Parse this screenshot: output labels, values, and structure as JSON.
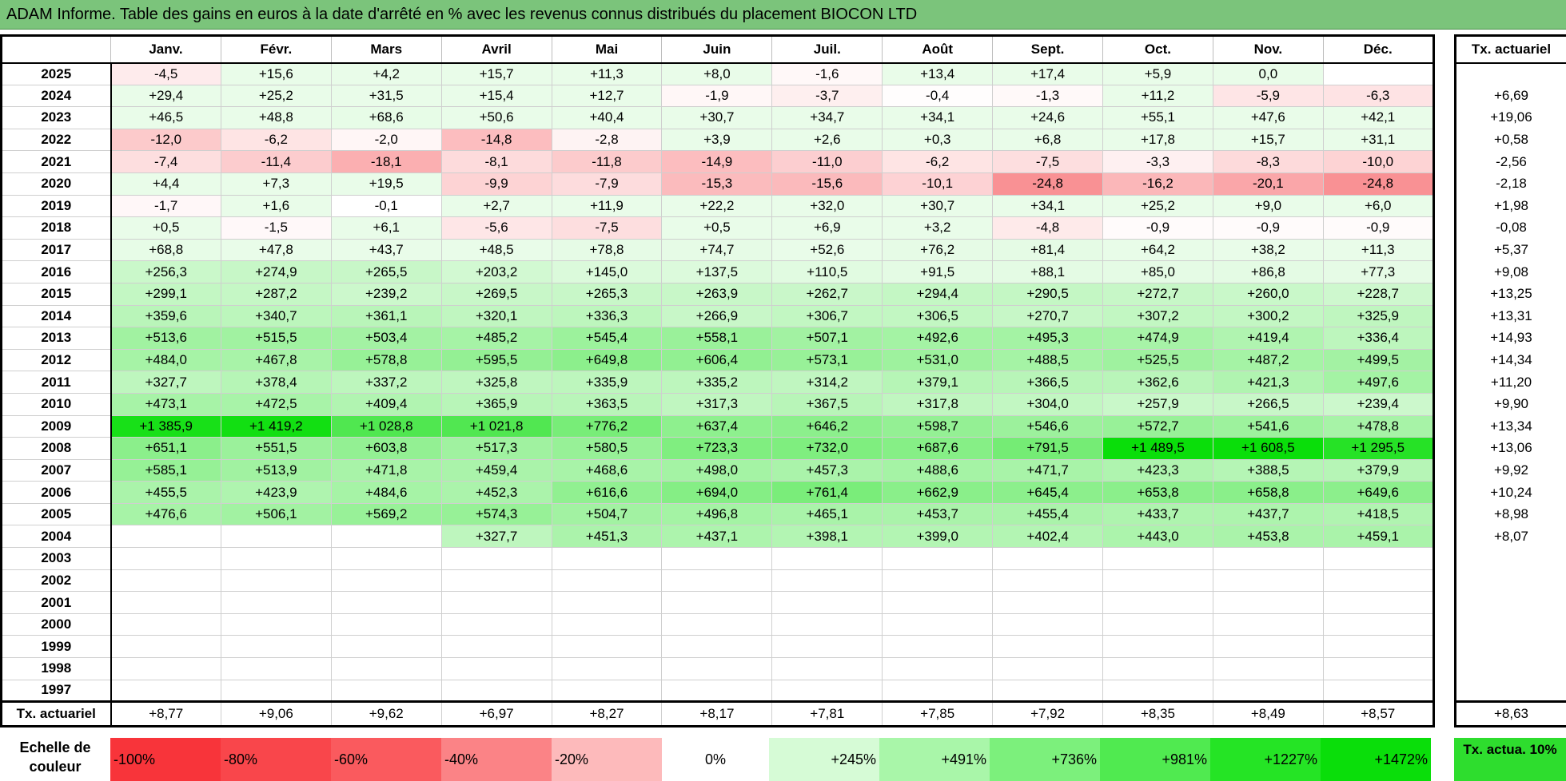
{
  "title": "ADAM Informe. Table des gains en euros à la date d'arrêté en % avec les revenus connus distribués du placement BIOCON LTD",
  "months": [
    "Janv.",
    "Févr.",
    "Mars",
    "Avril",
    "Mai",
    "Juin",
    "Juil.",
    "Août",
    "Sept.",
    "Oct.",
    "Nov.",
    "Déc."
  ],
  "side_header": "Tx. actuariel",
  "rows": [
    {
      "year": "2025",
      "values": [
        "-4,5",
        "+15,6",
        "+4,2",
        "+15,7",
        "+11,3",
        "+8,0",
        "-1,6",
        "+13,4",
        "+17,4",
        "+5,9",
        "0,0",
        ""
      ],
      "rate": ""
    },
    {
      "year": "2024",
      "values": [
        "+29,4",
        "+25,2",
        "+31,5",
        "+15,4",
        "+12,7",
        "-1,9",
        "-3,7",
        "-0,4",
        "-1,3",
        "+11,2",
        "-5,9",
        "-6,3"
      ],
      "rate": "+6,69"
    },
    {
      "year": "2023",
      "values": [
        "+46,5",
        "+48,8",
        "+68,6",
        "+50,6",
        "+40,4",
        "+30,7",
        "+34,7",
        "+34,1",
        "+24,6",
        "+55,1",
        "+47,6",
        "+42,1"
      ],
      "rate": "+19,06"
    },
    {
      "year": "2022",
      "values": [
        "-12,0",
        "-6,2",
        "-2,0",
        "-14,8",
        "-2,8",
        "+3,9",
        "+2,6",
        "+0,3",
        "+6,8",
        "+17,8",
        "+15,7",
        "+31,1"
      ],
      "rate": "+0,58"
    },
    {
      "year": "2021",
      "values": [
        "-7,4",
        "-11,4",
        "-18,1",
        "-8,1",
        "-11,8",
        "-14,9",
        "-11,0",
        "-6,2",
        "-7,5",
        "-3,3",
        "-8,3",
        "-10,0"
      ],
      "rate": "-2,56"
    },
    {
      "year": "2020",
      "values": [
        "+4,4",
        "+7,3",
        "+19,5",
        "-9,9",
        "-7,9",
        "-15,3",
        "-15,6",
        "-10,1",
        "-24,8",
        "-16,2",
        "-20,1",
        "-24,8"
      ],
      "rate": "-2,18"
    },
    {
      "year": "2019",
      "values": [
        "-1,7",
        "+1,6",
        "-0,1",
        "+2,7",
        "+11,9",
        "+22,2",
        "+32,0",
        "+30,7",
        "+34,1",
        "+25,2",
        "+9,0",
        "+6,0"
      ],
      "rate": "+1,98"
    },
    {
      "year": "2018",
      "values": [
        "+0,5",
        "-1,5",
        "+6,1",
        "-5,6",
        "-7,5",
        "+0,5",
        "+6,9",
        "+3,2",
        "-4,8",
        "-0,9",
        "-0,9",
        "-0,9"
      ],
      "rate": "-0,08"
    },
    {
      "year": "2017",
      "values": [
        "+68,8",
        "+47,8",
        "+43,7",
        "+48,5",
        "+78,8",
        "+74,7",
        "+52,6",
        "+76,2",
        "+81,4",
        "+64,2",
        "+38,2",
        "+11,3"
      ],
      "rate": "+5,37"
    },
    {
      "year": "2016",
      "values": [
        "+256,3",
        "+274,9",
        "+265,5",
        "+203,2",
        "+145,0",
        "+137,5",
        "+110,5",
        "+91,5",
        "+88,1",
        "+85,0",
        "+86,8",
        "+77,3"
      ],
      "rate": "+9,08"
    },
    {
      "year": "2015",
      "values": [
        "+299,1",
        "+287,2",
        "+239,2",
        "+269,5",
        "+265,3",
        "+263,9",
        "+262,7",
        "+294,4",
        "+290,5",
        "+272,7",
        "+260,0",
        "+228,7"
      ],
      "rate": "+13,25"
    },
    {
      "year": "2014",
      "values": [
        "+359,6",
        "+340,7",
        "+361,1",
        "+320,1",
        "+336,3",
        "+266,9",
        "+306,7",
        "+306,5",
        "+270,7",
        "+307,2",
        "+300,2",
        "+325,9"
      ],
      "rate": "+13,31"
    },
    {
      "year": "2013",
      "values": [
        "+513,6",
        "+515,5",
        "+503,4",
        "+485,2",
        "+545,4",
        "+558,1",
        "+507,1",
        "+492,6",
        "+495,3",
        "+474,9",
        "+419,4",
        "+336,4"
      ],
      "rate": "+14,93"
    },
    {
      "year": "2012",
      "values": [
        "+484,0",
        "+467,8",
        "+578,8",
        "+595,5",
        "+649,8",
        "+606,4",
        "+573,1",
        "+531,0",
        "+488,5",
        "+525,5",
        "+487,2",
        "+499,5"
      ],
      "rate": "+14,34"
    },
    {
      "year": "2011",
      "values": [
        "+327,7",
        "+378,4",
        "+337,2",
        "+325,8",
        "+335,9",
        "+335,2",
        "+314,2",
        "+379,1",
        "+366,5",
        "+362,6",
        "+421,3",
        "+497,6"
      ],
      "rate": "+11,20"
    },
    {
      "year": "2010",
      "values": [
        "+473,1",
        "+472,5",
        "+409,4",
        "+365,9",
        "+363,5",
        "+317,3",
        "+367,5",
        "+317,8",
        "+304,0",
        "+257,9",
        "+266,5",
        "+239,4"
      ],
      "rate": "+9,90"
    },
    {
      "year": "2009",
      "values": [
        "+1 385,9",
        "+1 419,2",
        "+1 028,8",
        "+1 021,8",
        "+776,2",
        "+637,4",
        "+646,2",
        "+598,7",
        "+546,6",
        "+572,7",
        "+541,6",
        "+478,8"
      ],
      "rate": "+13,34"
    },
    {
      "year": "2008",
      "values": [
        "+651,1",
        "+551,5",
        "+603,8",
        "+517,3",
        "+580,5",
        "+723,3",
        "+732,0",
        "+687,6",
        "+791,5",
        "+1 489,5",
        "+1 608,5",
        "+1 295,5"
      ],
      "rate": "+13,06"
    },
    {
      "year": "2007",
      "values": [
        "+585,1",
        "+513,9",
        "+471,8",
        "+459,4",
        "+468,6",
        "+498,0",
        "+457,3",
        "+488,6",
        "+471,7",
        "+423,3",
        "+388,5",
        "+379,9"
      ],
      "rate": "+9,92"
    },
    {
      "year": "2006",
      "values": [
        "+455,5",
        "+423,9",
        "+484,6",
        "+452,3",
        "+616,6",
        "+694,0",
        "+761,4",
        "+662,9",
        "+645,4",
        "+653,8",
        "+658,8",
        "+649,6"
      ],
      "rate": "+10,24"
    },
    {
      "year": "2005",
      "values": [
        "+476,6",
        "+506,1",
        "+569,2",
        "+574,3",
        "+504,7",
        "+496,8",
        "+465,1",
        "+453,7",
        "+455,4",
        "+433,7",
        "+437,7",
        "+418,5"
      ],
      "rate": "+8,98"
    },
    {
      "year": "2004",
      "values": [
        "",
        "",
        "",
        "+327,7",
        "+451,3",
        "+437,1",
        "+398,1",
        "+399,0",
        "+402,4",
        "+443,0",
        "+453,8",
        "+459,1"
      ],
      "rate": "+8,07"
    },
    {
      "year": "2003",
      "values": [
        "",
        "",
        "",
        "",
        "",
        "",
        "",
        "",
        "",
        "",
        "",
        ""
      ],
      "rate": ""
    },
    {
      "year": "2002",
      "values": [
        "",
        "",
        "",
        "",
        "",
        "",
        "",
        "",
        "",
        "",
        "",
        ""
      ],
      "rate": ""
    },
    {
      "year": "2001",
      "values": [
        "",
        "",
        "",
        "",
        "",
        "",
        "",
        "",
        "",
        "",
        "",
        ""
      ],
      "rate": ""
    },
    {
      "year": "2000",
      "values": [
        "",
        "",
        "",
        "",
        "",
        "",
        "",
        "",
        "",
        "",
        "",
        ""
      ],
      "rate": ""
    },
    {
      "year": "1999",
      "values": [
        "",
        "",
        "",
        "",
        "",
        "",
        "",
        "",
        "",
        "",
        "",
        ""
      ],
      "rate": ""
    },
    {
      "year": "1998",
      "values": [
        "",
        "",
        "",
        "",
        "",
        "",
        "",
        "",
        "",
        "",
        "",
        ""
      ],
      "rate": ""
    },
    {
      "year": "1997",
      "values": [
        "",
        "",
        "",
        "",
        "",
        "",
        "",
        "",
        "",
        "",
        "",
        ""
      ],
      "rate": ""
    }
  ],
  "footer": {
    "label": "Tx. actuariel",
    "values": [
      "+8,77",
      "+9,06",
      "+9,62",
      "+6,97",
      "+8,27",
      "+8,17",
      "+7,81",
      "+7,85",
      "+7,92",
      "+8,35",
      "+8,49",
      "+8,57"
    ],
    "rate": "+8,63"
  },
  "legend": {
    "label": "Echelle de couleur",
    "steps": [
      {
        "text": "-100%",
        "color": "#f8343a",
        "kind": "neg"
      },
      {
        "text": "-80%",
        "color": "#f9464b",
        "kind": "neg"
      },
      {
        "text": "-60%",
        "color": "#fa5a5e",
        "kind": "neg"
      },
      {
        "text": "-40%",
        "color": "#fb8386",
        "kind": "neg"
      },
      {
        "text": "-20%",
        "color": "#fdbabb",
        "kind": "neg"
      },
      {
        "text": "0%",
        "color": "#ffffff",
        "kind": "zero"
      },
      {
        "text": "+245%",
        "color": "#d6fbd6",
        "kind": "pos"
      },
      {
        "text": "+491%",
        "color": "#a9f6a9",
        "kind": "pos"
      },
      {
        "text": "+736%",
        "color": "#7cf07c",
        "kind": "pos"
      },
      {
        "text": "+981%",
        "color": "#50ea50",
        "kind": "pos"
      },
      {
        "text": "+1227%",
        "color": "#25e425",
        "kind": "pos"
      },
      {
        "text": "+1472%",
        "color": "#0ade0a",
        "kind": "pos"
      }
    ],
    "ref_label": "Tx. actua. 10%",
    "ref_color": "#2edd2e"
  },
  "colors": {
    "title_bar": "#7bc47b",
    "negative_max": "#f8343a",
    "positive_max": "#0ade0a"
  }
}
